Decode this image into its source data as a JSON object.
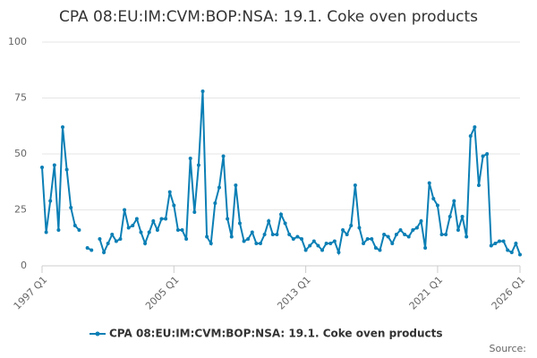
{
  "chart_data": {
    "type": "line",
    "title": "CPA 08:EU:IM:CVM:BOP:NSA: 19.1. Coke oven products",
    "categories": [
      "1997 Q1",
      null,
      null,
      null,
      null,
      null,
      null,
      null,
      null,
      null,
      null,
      null,
      null,
      null,
      null,
      null,
      null,
      null,
      null,
      null,
      null,
      null,
      null,
      null,
      null,
      null,
      null,
      null,
      null,
      null,
      null,
      null,
      "2005 Q1",
      null,
      null,
      null,
      null,
      null,
      null,
      null,
      null,
      null,
      null,
      null,
      null,
      null,
      null,
      null,
      null,
      null,
      null,
      null,
      null,
      null,
      null,
      null,
      null,
      null,
      null,
      null,
      null,
      null,
      null,
      null,
      "2013 Q1",
      null,
      null,
      null,
      null,
      null,
      null,
      null,
      null,
      null,
      null,
      null,
      null,
      null,
      null,
      null,
      null,
      null,
      null,
      null,
      null,
      null,
      null,
      null,
      null,
      null,
      null,
      null,
      null,
      null,
      null,
      null,
      "2021 Q1",
      null,
      null,
      null,
      null,
      null,
      null,
      null,
      null,
      null,
      null,
      null,
      null,
      null,
      null,
      null,
      null,
      null,
      null,
      null,
      "2026 Q1"
    ],
    "series": [
      {
        "name": "CPA 08:EU:IM:CVM:BOP:NSA: 19.1. Coke oven products",
        "color": "#0b7fb5",
        "values": [
          44,
          15,
          29,
          45,
          16,
          62,
          43,
          26,
          18,
          16,
          null,
          8,
          7,
          null,
          12,
          6,
          10,
          14,
          11,
          12,
          25,
          17,
          18,
          21,
          15,
          10,
          15,
          20,
          16,
          21,
          21,
          33,
          27,
          16,
          16,
          12,
          48,
          24,
          45,
          78,
          13,
          10,
          28,
          35,
          49,
          21,
          13,
          36,
          19,
          11,
          12,
          15,
          10,
          10,
          14,
          20,
          14,
          14,
          23,
          19,
          14,
          12,
          13,
          12,
          7,
          9,
          11,
          9,
          7,
          10,
          10,
          11,
          6,
          16,
          14,
          18,
          36,
          17,
          10,
          12,
          12,
          8,
          7,
          14,
          13,
          10,
          14,
          16,
          14,
          13,
          16,
          17,
          20,
          8,
          37,
          30,
          27,
          14,
          14,
          22,
          29,
          16,
          22,
          13,
          58,
          62,
          36,
          49,
          50,
          9,
          10,
          11,
          11,
          7,
          6,
          10,
          5
        ]
      }
    ],
    "ylim": [
      0,
      100
    ],
    "yticks": [
      0,
      25,
      50,
      75,
      100
    ],
    "grid": true,
    "legend": "bottom",
    "source": "Source:"
  }
}
